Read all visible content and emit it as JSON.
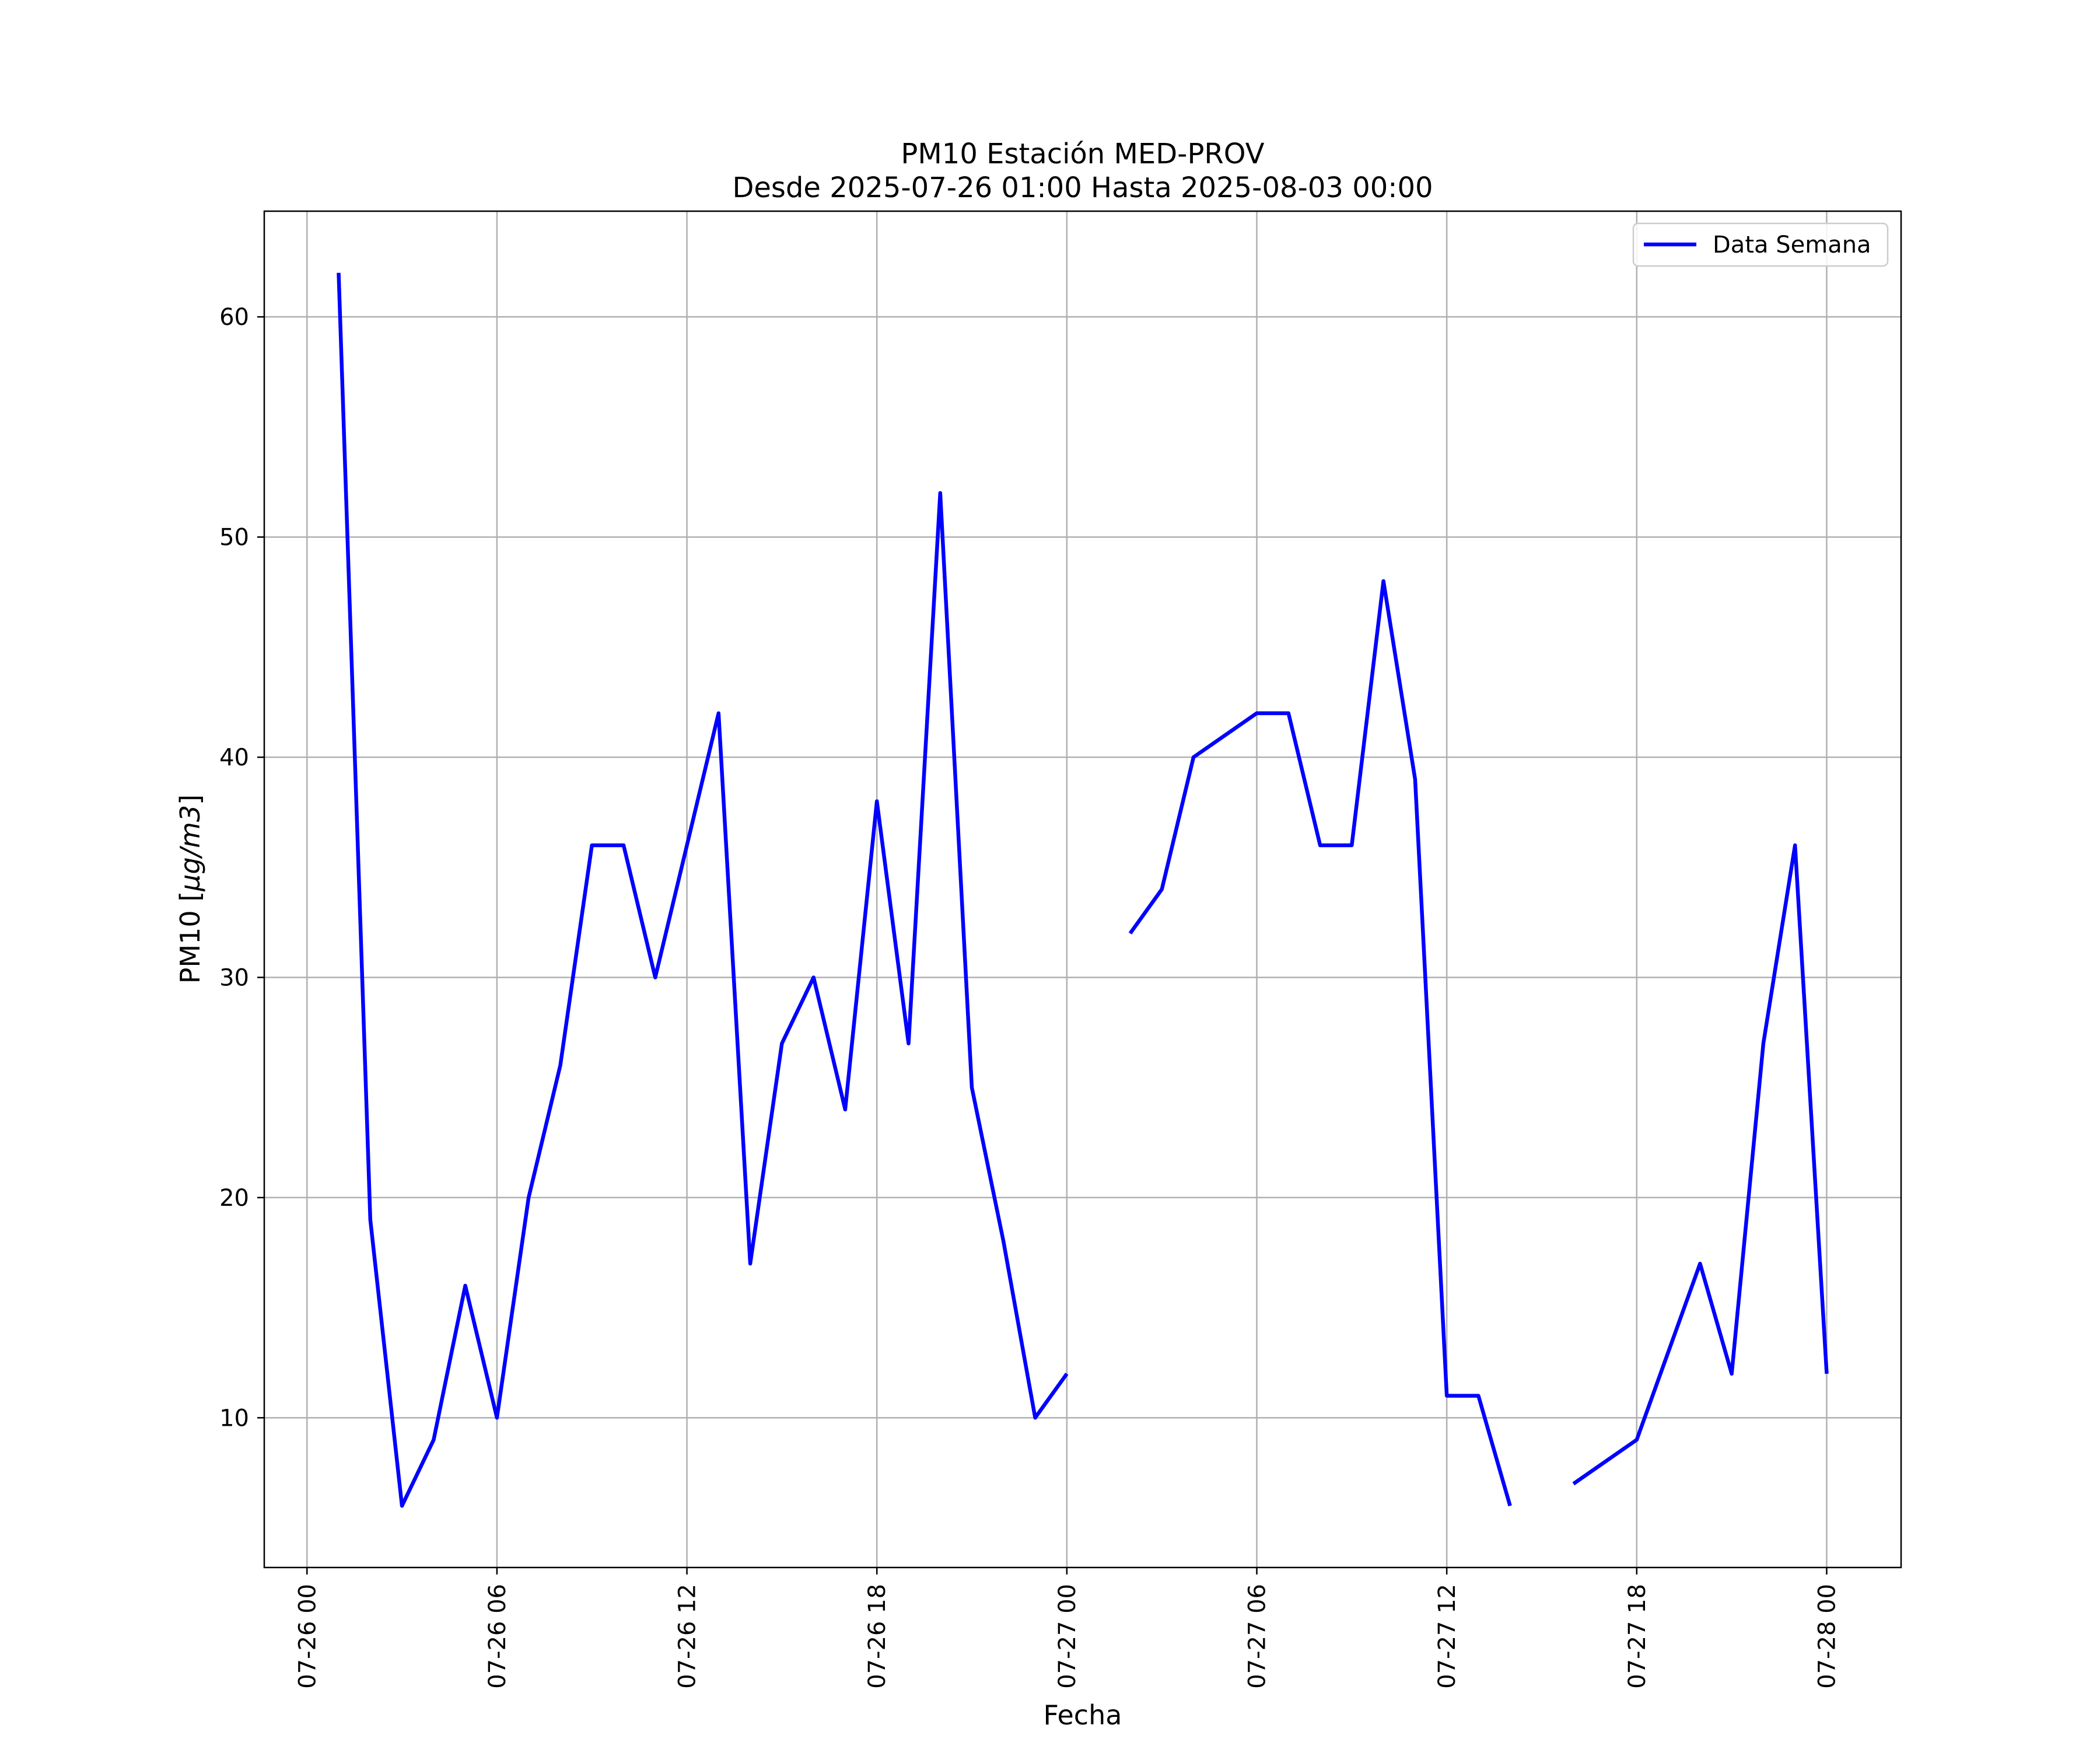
{
  "chart_data": {
    "type": "line",
    "title": "PM10 Estación MED-PROV",
    "subtitle": "Desde 2025-07-26 01:00 Hasta 2025-08-03 00:00",
    "xlabel": "Fecha",
    "ylabel_prefix": "PM10 [",
    "ylabel_unit": "μg/m3",
    "ylabel_suffix": "]",
    "x_ticks": [
      {
        "hour": 0,
        "label": "07-26 00"
      },
      {
        "hour": 6,
        "label": "07-26 06"
      },
      {
        "hour": 12,
        "label": "07-26 12"
      },
      {
        "hour": 18,
        "label": "07-26 18"
      },
      {
        "hour": 24,
        "label": "07-27 00"
      },
      {
        "hour": 30,
        "label": "07-27 06"
      },
      {
        "hour": 36,
        "label": "07-27 12"
      },
      {
        "hour": 42,
        "label": "07-27 18"
      },
      {
        "hour": 48,
        "label": "07-28 00"
      }
    ],
    "y_ticks": [
      10,
      20,
      30,
      40,
      50,
      60
    ],
    "xlim": [
      -1.35,
      50.35
    ],
    "ylim": [
      3.2,
      64.8
    ],
    "grid": true,
    "legend_position": "top-right",
    "series": [
      {
        "name": "Data Semana",
        "color": "#0000ff",
        "points": [
          [
            1,
            62
          ],
          [
            2,
            19
          ],
          [
            3,
            6
          ],
          [
            4,
            9
          ],
          [
            5,
            16
          ],
          [
            6,
            10
          ],
          [
            7,
            20
          ],
          [
            8,
            26
          ],
          [
            9,
            36
          ],
          [
            10,
            36
          ],
          [
            11,
            30
          ],
          [
            12,
            36
          ],
          [
            13,
            42
          ],
          [
            14,
            17
          ],
          [
            15,
            27
          ],
          [
            16,
            30
          ],
          [
            17,
            24
          ],
          [
            18,
            38
          ],
          [
            19,
            27
          ],
          [
            20,
            52
          ],
          [
            21,
            25
          ],
          [
            22,
            18
          ],
          [
            23,
            10
          ],
          [
            24,
            12
          ],
          [
            25,
            null
          ],
          [
            26,
            32
          ],
          [
            27,
            34
          ],
          [
            28,
            40
          ],
          [
            29,
            41
          ],
          [
            30,
            42
          ],
          [
            31,
            42
          ],
          [
            32,
            36
          ],
          [
            33,
            36
          ],
          [
            34,
            48
          ],
          [
            35,
            39
          ],
          [
            36,
            11
          ],
          [
            37,
            11
          ],
          [
            38,
            6
          ],
          [
            39,
            null
          ],
          [
            40,
            7
          ],
          [
            41,
            8
          ],
          [
            42,
            9
          ],
          [
            43,
            13
          ],
          [
            44,
            17
          ],
          [
            45,
            12
          ],
          [
            46,
            27
          ],
          [
            47,
            36
          ],
          [
            48,
            12
          ]
        ]
      }
    ]
  }
}
